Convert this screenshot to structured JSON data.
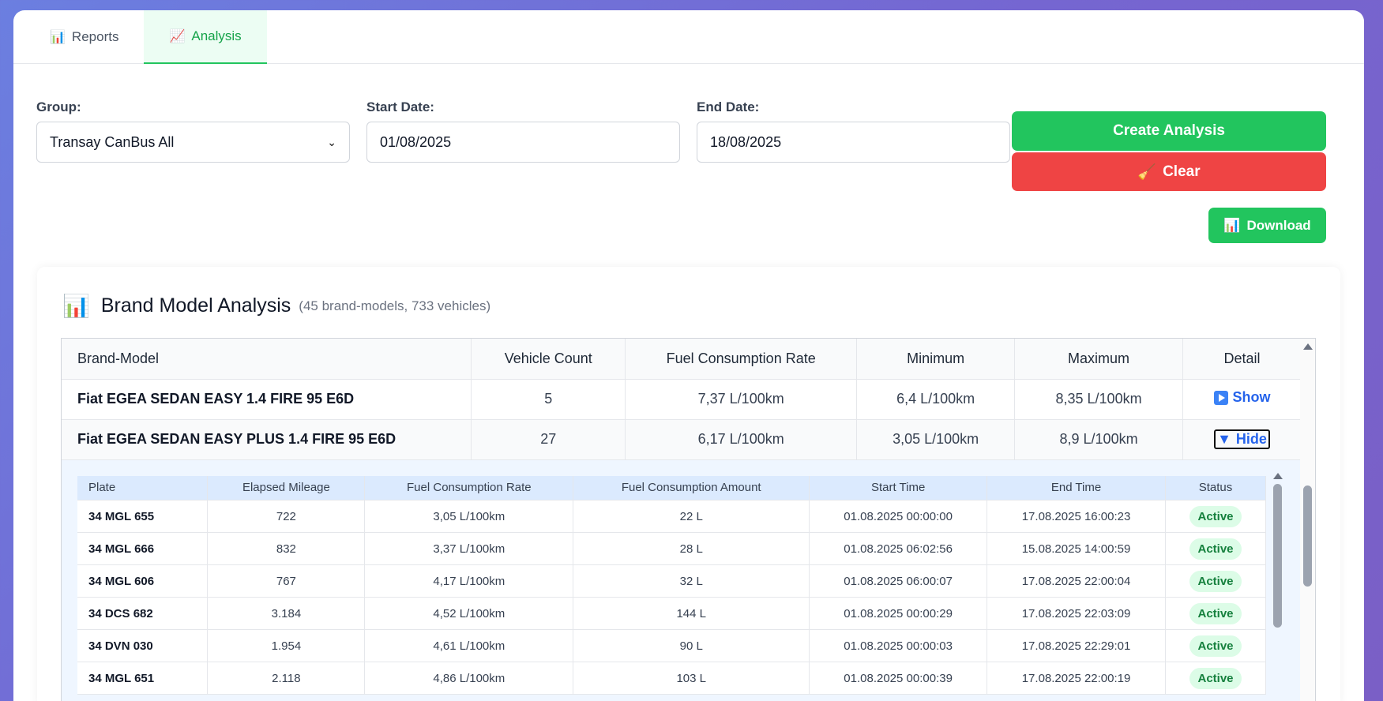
{
  "tabs": [
    {
      "icon": "📊",
      "label": "Reports"
    },
    {
      "icon": "📈",
      "label": "Analysis"
    }
  ],
  "filters": {
    "group_label": "Group:",
    "group_value": "Transay CanBus All",
    "start_label": "Start Date:",
    "start_value": "01/08/2025",
    "end_label": "End Date:",
    "end_value": "18/08/2025"
  },
  "buttons": {
    "create": "Create Analysis",
    "clear_icon": "🧹",
    "clear": "Clear",
    "download_icon": "📊",
    "download": "Download"
  },
  "panel": {
    "icon": "📊",
    "title": "Brand Model Analysis",
    "subtitle": "(45 brand-models, 733 vehicles)"
  },
  "main_table": {
    "headers": [
      "Brand-Model",
      "Vehicle Count",
      "Fuel Consumption Rate",
      "Minimum",
      "Maximum",
      "Detail"
    ],
    "rows": [
      {
        "model": "Fiat EGEA SEDAN EASY 1.4 FIRE 95 E6D",
        "count": "5",
        "rate": "7,37 L/100km",
        "min": "6,4 L/100km",
        "max": "8,35 L/100km",
        "detail": "Show"
      },
      {
        "model": "Fiat EGEA SEDAN EASY PLUS 1.4 FIRE 95 E6D",
        "count": "27",
        "rate": "6,17 L/100km",
        "min": "3,05 L/100km",
        "max": "8,9 L/100km",
        "detail": "Hide"
      }
    ]
  },
  "sub_table": {
    "headers": [
      "Plate",
      "Elapsed Mileage",
      "Fuel Consumption Rate",
      "Fuel Consumption Amount",
      "Start Time",
      "End Time",
      "Status"
    ],
    "rows": [
      {
        "plate": "34 MGL 655",
        "mileage": "722",
        "rate": "3,05 L/100km",
        "amount": "22 L",
        "start": "01.08.2025 00:00:00",
        "end": "17.08.2025 16:00:23",
        "status": "Active"
      },
      {
        "plate": "34 MGL 666",
        "mileage": "832",
        "rate": "3,37 L/100km",
        "amount": "28 L",
        "start": "01.08.2025 06:02:56",
        "end": "15.08.2025 14:00:59",
        "status": "Active"
      },
      {
        "plate": "34 MGL 606",
        "mileage": "767",
        "rate": "4,17 L/100km",
        "amount": "32 L",
        "start": "01.08.2025 06:00:07",
        "end": "17.08.2025 22:00:04",
        "status": "Active"
      },
      {
        "plate": "34 DCS 682",
        "mileage": "3.184",
        "rate": "4,52 L/100km",
        "amount": "144 L",
        "start": "01.08.2025 00:00:29",
        "end": "17.08.2025 22:03:09",
        "status": "Active"
      },
      {
        "plate": "34 DVN 030",
        "mileage": "1.954",
        "rate": "4,61 L/100km",
        "amount": "90 L",
        "start": "01.08.2025 00:00:03",
        "end": "17.08.2025 22:29:01",
        "status": "Active"
      },
      {
        "plate": "34 MGL 651",
        "mileage": "2.118",
        "rate": "4,86 L/100km",
        "amount": "103 L",
        "start": "01.08.2025 00:00:39",
        "end": "17.08.2025 22:00:19",
        "status": "Active"
      }
    ]
  },
  "colors": {
    "primary": "#22c55e",
    "danger": "#ef4444",
    "link": "#2563eb"
  }
}
